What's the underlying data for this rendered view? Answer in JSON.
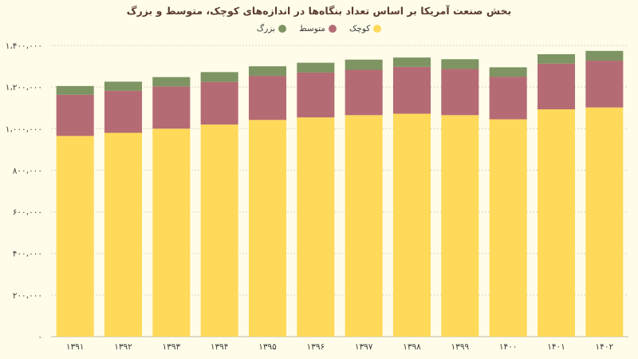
{
  "chart_data": {
    "type": "bar",
    "stacked": true,
    "title": "بخش صنعت آمریکا بر اساس تعداد بنگاه‌ها در اندازه‌های کوچک، متوسط و بزرگ",
    "categories": [
      "۱۳۹۱",
      "۱۳۹۲",
      "۱۳۹۳",
      "۱۳۹۴",
      "۱۳۹۵",
      "۱۳۹۶",
      "۱۳۹۷",
      "۱۳۹۸",
      "۱۳۹۹",
      "۱۴۰۰",
      "۱۴۰۱",
      "۱۴۰۲"
    ],
    "series": [
      {
        "name": "کوچک",
        "color": "#ffd95a",
        "values": [
          965000,
          980000,
          1000000,
          1020000,
          1042000,
          1054000,
          1065000,
          1072000,
          1065000,
          1045000,
          1093000,
          1102000
        ]
      },
      {
        "name": "متوسط",
        "color": "#b56b74",
        "values": [
          198000,
          202000,
          203000,
          205000,
          212000,
          216000,
          218000,
          225000,
          222000,
          205000,
          220000,
          225000
        ]
      },
      {
        "name": "بزرگ",
        "color": "#7e9463",
        "values": [
          42000,
          44000,
          45000,
          47000,
          46000,
          47000,
          49000,
          45000,
          47000,
          45000,
          45000,
          47000
        ]
      }
    ],
    "y_ticks": [
      "۰",
      "۲۰۰،۰۰۰",
      "۴۰۰،۰۰۰",
      "۶۰۰،۰۰۰",
      "۸۰۰،۰۰۰",
      "۱،۰۰۰،۰۰۰",
      "۱،۲۰۰،۰۰۰",
      "۱،۴۰۰،۰۰۰"
    ],
    "ylim": [
      0,
      1400000
    ],
    "grid": true,
    "legend_position": "top-center"
  }
}
